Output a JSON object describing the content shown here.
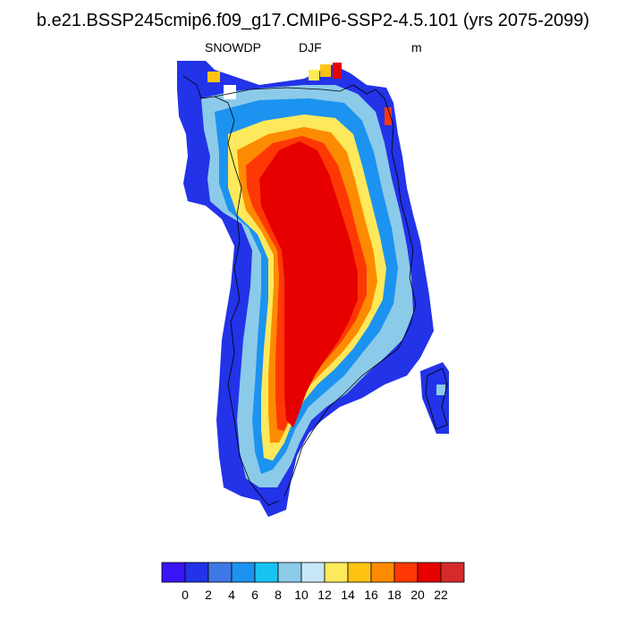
{
  "title": "b.e21.BSSP245cmip6.f09_g17.CMIP6-SSP2-4.5.101 (yrs 2075-2099)",
  "left_label": "SNOWDP",
  "center_label": "DJF",
  "right_label": "m",
  "colorbar": {
    "colors": [
      "#3a14f5",
      "#2233e8",
      "#3e77e6",
      "#1c93f0",
      "#18c3f2",
      "#8ccae9",
      "#c8e7f6",
      "#fde95b",
      "#fec312",
      "#fd8b02",
      "#fe3805",
      "#e60000",
      "#d42a2a"
    ],
    "tick_labels": [
      "0",
      "2",
      "4",
      "6",
      "8",
      "10",
      "12",
      "14",
      "16",
      "18",
      "20",
      "22"
    ]
  }
}
